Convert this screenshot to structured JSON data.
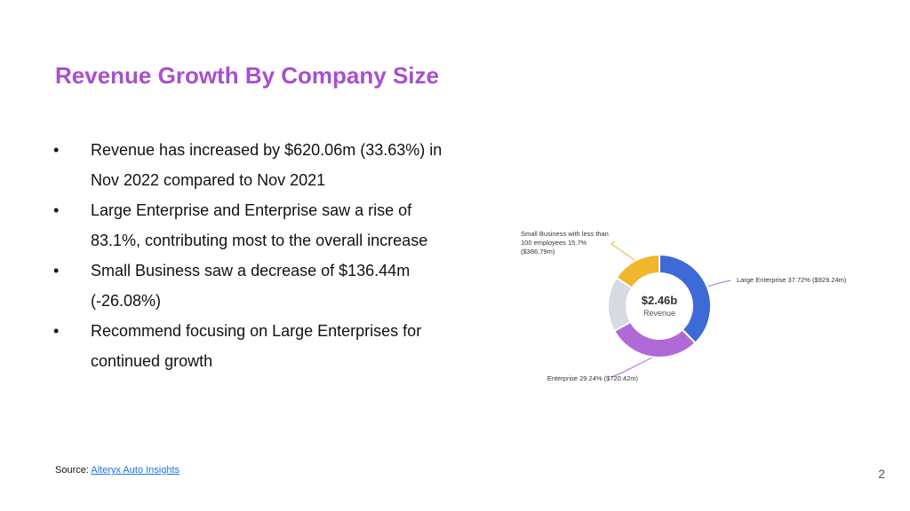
{
  "slide": {
    "title": "Revenue Growth By Company Size",
    "bullets": [
      "Revenue has increased by $620.06m (33.63%) in Nov 2022 compared to Nov 2021",
      "Large Enterprise and Enterprise saw a rise of 83.1%, contributing most to the overall increase",
      "Small Business saw a decrease of $136.44m (-26.08%)",
      "Recommend focusing on Large Enterprises for continued growth"
    ],
    "bullet_char": "•",
    "source_label": "Source:",
    "source_link": "Alteryx Auto Insights",
    "page_number": "2"
  },
  "chart_data": {
    "type": "pie",
    "variant": "donut",
    "center_value": "$2.46b",
    "center_label": "Revenue",
    "slices": [
      {
        "label": "Large Enterprise 37.72% ($929.24m)",
        "percent": 37.72,
        "value_m": 929.24,
        "color": "#3d6ad6"
      },
      {
        "label": "Enterprise 29.24% ($720.42m)",
        "percent": 29.24,
        "value_m": 720.42,
        "color": "#b06ad8"
      },
      {
        "label": "",
        "percent": 17.34,
        "color": "#d5dae3"
      },
      {
        "label": "Small Business with less than 100 employees 15.7% ($386.79m)",
        "percent": 15.7,
        "value_m": 386.79,
        "color": "#f0b62c"
      }
    ],
    "label_color": "#333333",
    "leader_colors": [
      "#8e7be0",
      "#b06ad8",
      "#f0b62c"
    ]
  }
}
